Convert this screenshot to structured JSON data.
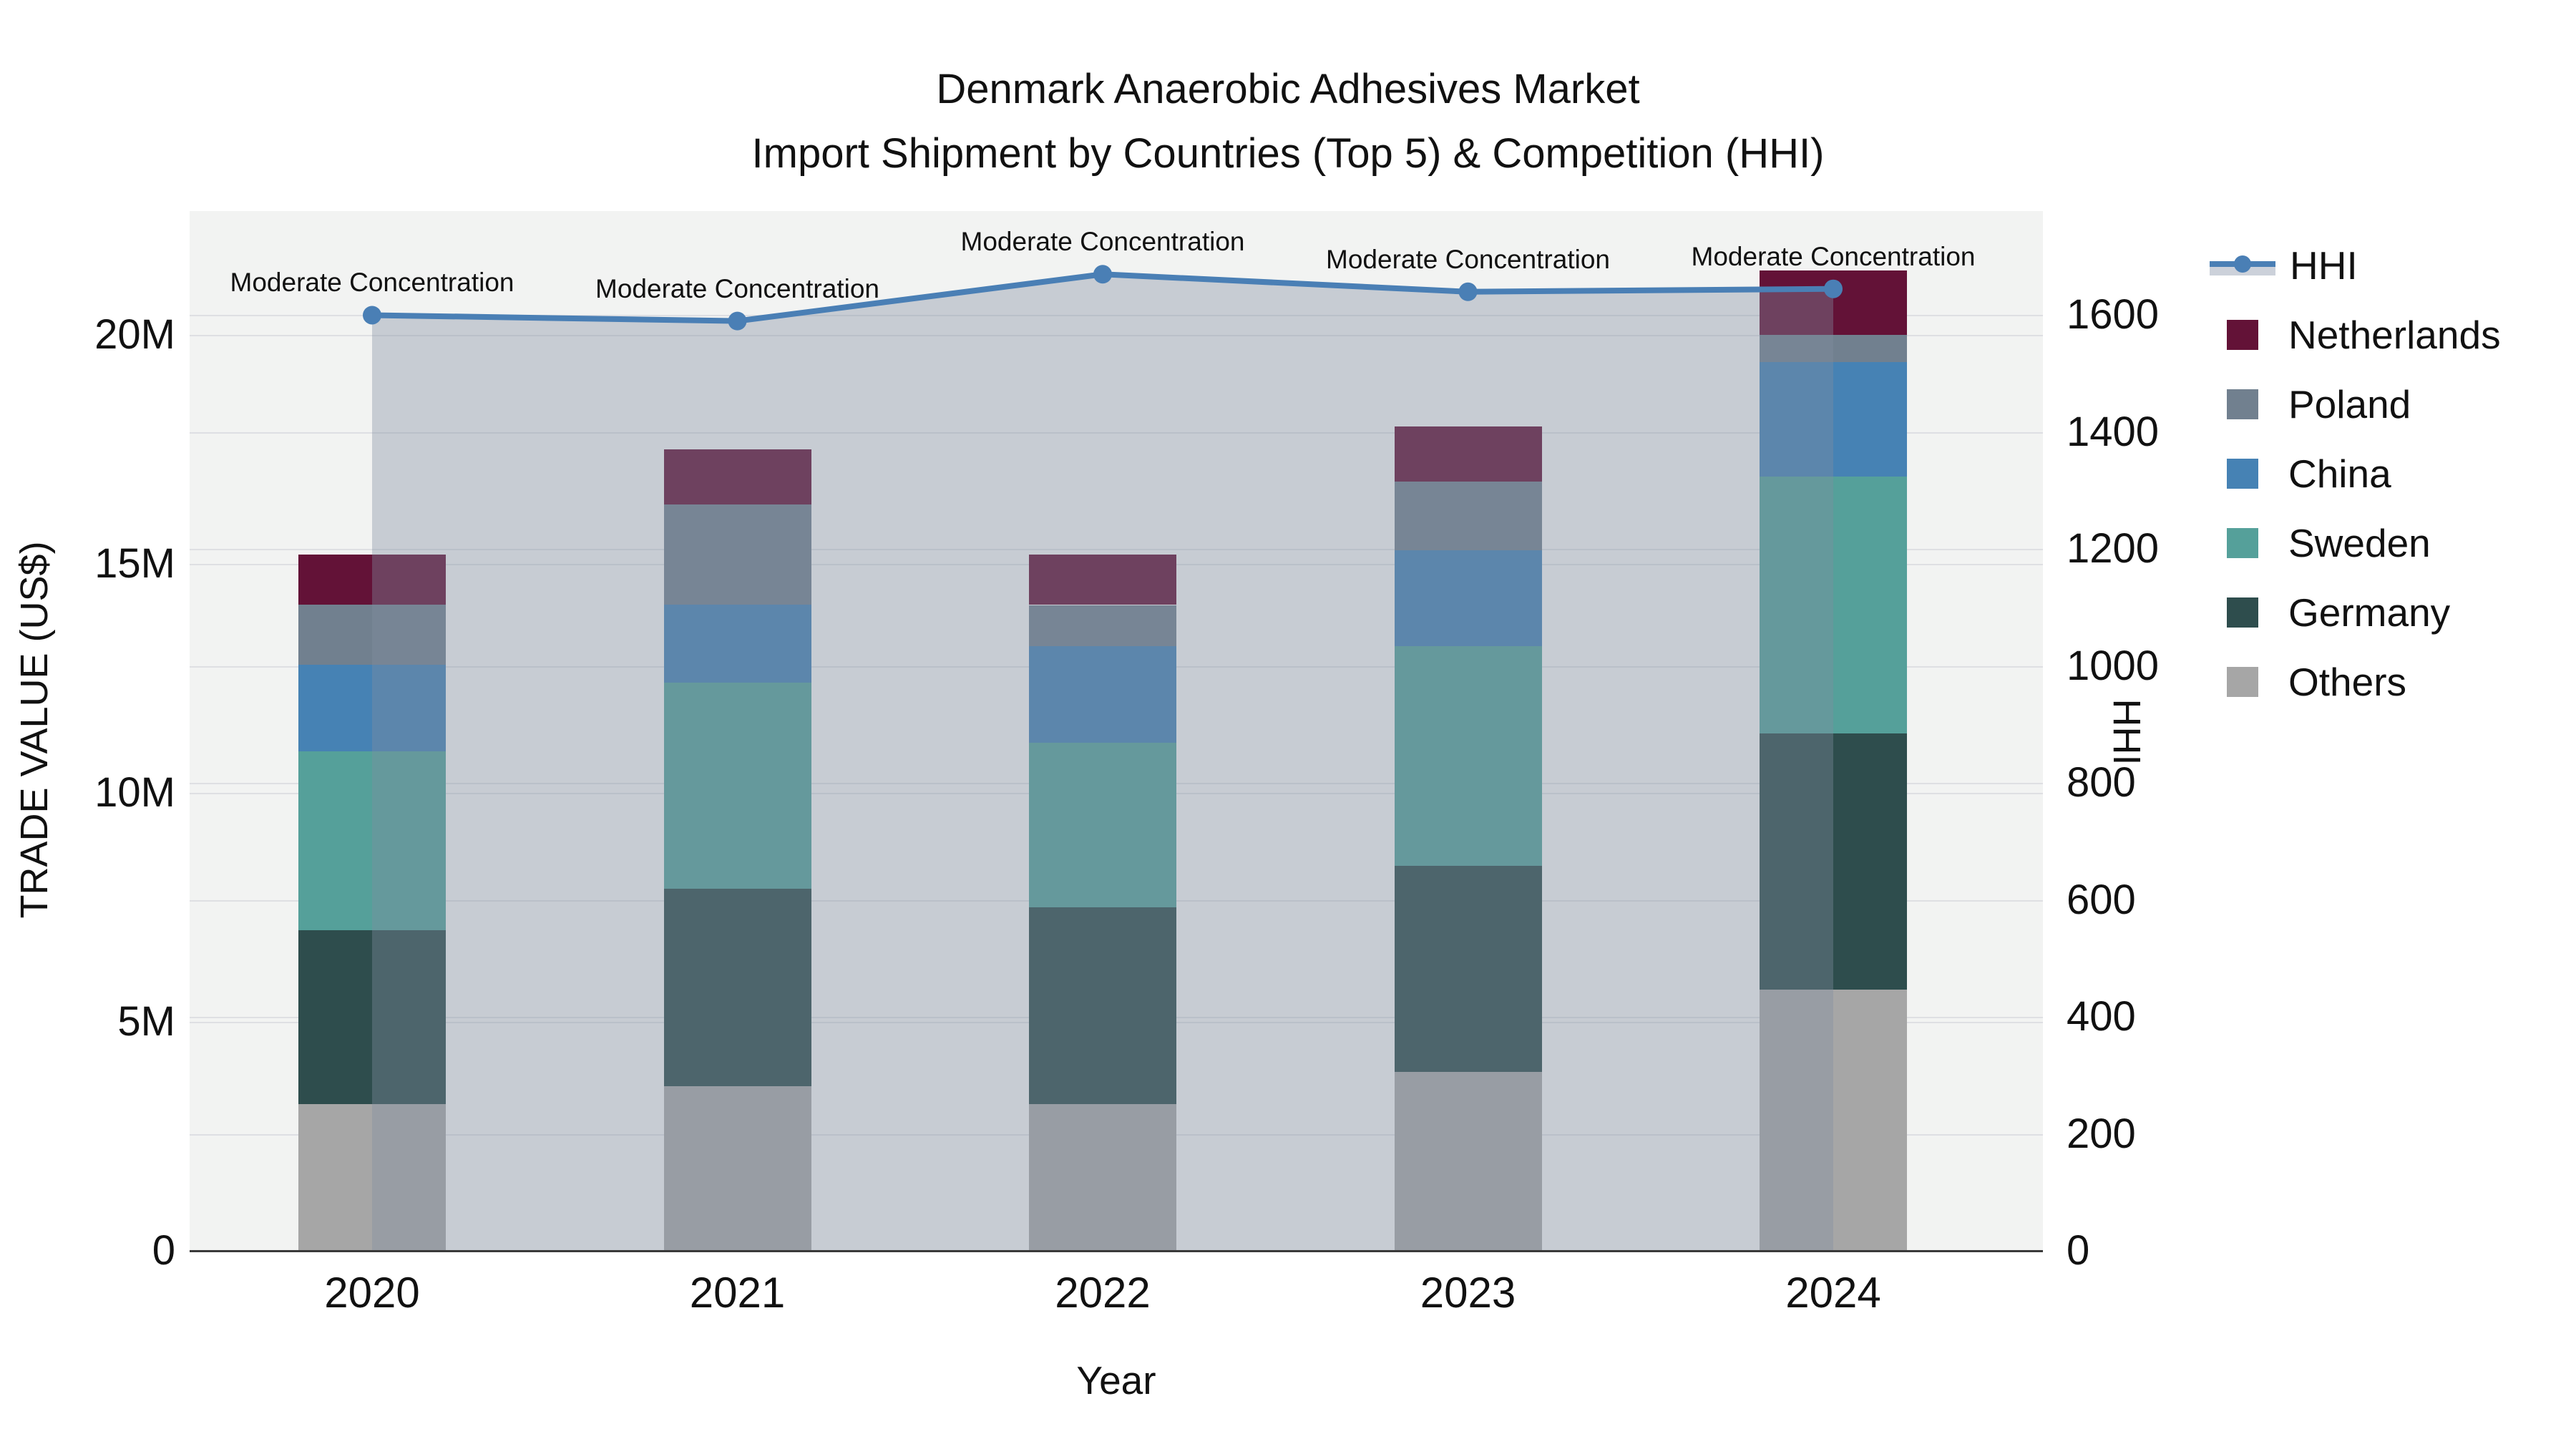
{
  "title": {
    "line1": "Denmark Anaerobic Adhesives Market",
    "line2": "Import Shipment by Countries (Top 5) & Competition (HHI)"
  },
  "axes": {
    "x": {
      "title": "Year",
      "ticks": [
        "2020",
        "2021",
        "2022",
        "2023",
        "2024"
      ]
    },
    "y_left": {
      "title": "TRADE VALUE (US$)",
      "ticks": [
        {
          "label": "0",
          "value": 0
        },
        {
          "label": "5M",
          "value": 5
        },
        {
          "label": "10M",
          "value": 10
        },
        {
          "label": "15M",
          "value": 15
        },
        {
          "label": "20M",
          "value": 20
        }
      ],
      "range": [
        0,
        22.7
      ]
    },
    "y_right": {
      "title": "HHI",
      "ticks": [
        {
          "label": "0",
          "value": 0
        },
        {
          "label": "200",
          "value": 200
        },
        {
          "label": "400",
          "value": 400
        },
        {
          "label": "600",
          "value": 600
        },
        {
          "label": "800",
          "value": 800
        },
        {
          "label": "1000",
          "value": 1000
        },
        {
          "label": "1200",
          "value": 1200
        },
        {
          "label": "1400",
          "value": 1400
        },
        {
          "label": "1600",
          "value": 1600
        }
      ],
      "range": [
        0,
        1778
      ]
    }
  },
  "legend": {
    "order": [
      "HHI",
      "Netherlands",
      "Poland",
      "China",
      "Sweden",
      "Germany",
      "Others"
    ]
  },
  "colors": {
    "plot_background": "#f2f3f2",
    "gridline": "#dedfe3",
    "axis_line": "#3a3a3a",
    "hhi_line": "#4a7fb5",
    "hhi_area_fill": "rgba(130,142,160,0.38)",
    "hhi_legend_band": "#ccd1da",
    "text": "#111111"
  },
  "chart_data": {
    "type": "bar",
    "stacked": true,
    "title": "Denmark Anaerobic Adhesives Market — Import Shipment by Countries (Top 5) & Competition (HHI)",
    "xlabel": "Year",
    "ylabel": "TRADE VALUE (US$)",
    "y2label": "HHI",
    "unit": "million US$",
    "categories": [
      "2020",
      "2021",
      "2022",
      "2023",
      "2024"
    ],
    "series": [
      {
        "name": "Others",
        "color": "#a6a6a6",
        "values": [
          3.2,
          3.6,
          3.2,
          3.9,
          5.7
        ]
      },
      {
        "name": "Germany",
        "color": "#2e4d4d",
        "values": [
          3.8,
          4.3,
          4.3,
          4.5,
          5.6
        ]
      },
      {
        "name": "Sweden",
        "color": "#55a09a",
        "values": [
          3.9,
          4.5,
          3.6,
          4.8,
          5.6
        ]
      },
      {
        "name": "China",
        "color": "#4682b4",
        "values": [
          1.9,
          1.7,
          2.1,
          2.1,
          2.5
        ]
      },
      {
        "name": "Poland",
        "color": "#71808f",
        "values": [
          1.3,
          2.2,
          0.9,
          1.5,
          0.6
        ]
      },
      {
        "name": "Netherlands",
        "color": "#631237",
        "values": [
          1.1,
          1.2,
          1.1,
          1.2,
          1.4
        ]
      }
    ],
    "bar_totals": [
      15.2,
      17.5,
      15.2,
      18.0,
      21.4
    ],
    "line_series": {
      "name": "HHI",
      "axis": "right",
      "color": "#4a7fb5",
      "values": [
        1600,
        1590,
        1670,
        1640,
        1645
      ],
      "area_fill": true
    },
    "annotations": [
      {
        "text": "Moderate Concentration",
        "x": "2020"
      },
      {
        "text": "Moderate Concentration",
        "x": "2021"
      },
      {
        "text": "Moderate Concentration",
        "x": "2022"
      },
      {
        "text": "Moderate Concentration",
        "x": "2023"
      },
      {
        "text": "Moderate Concentration",
        "x": "2024"
      }
    ],
    "ylim": [
      0,
      22.7
    ],
    "y2lim": [
      0,
      1778
    ],
    "grid": true,
    "legend_position": "right"
  }
}
